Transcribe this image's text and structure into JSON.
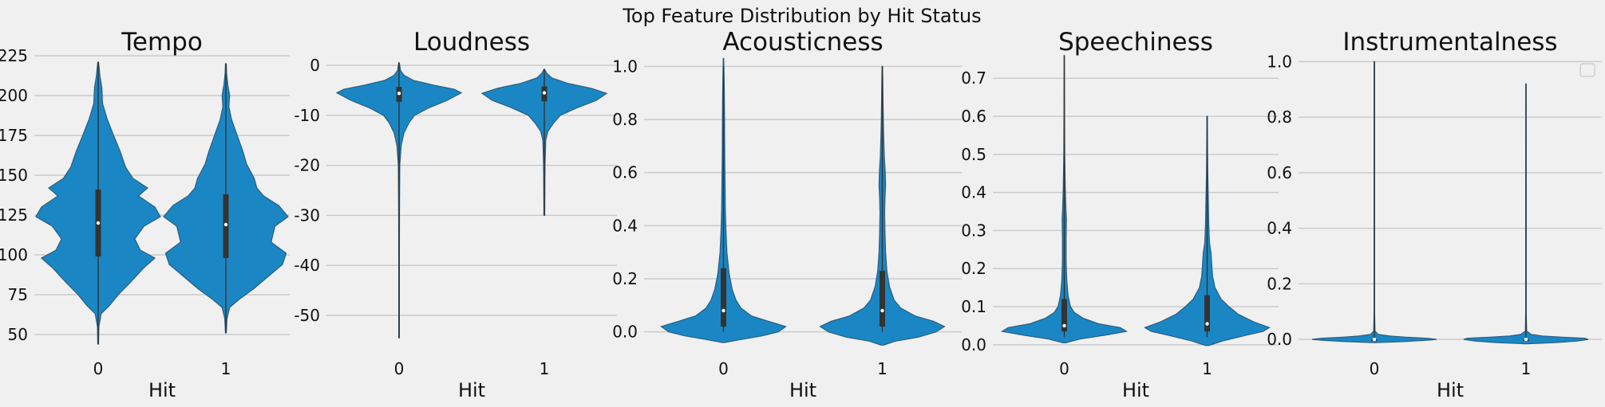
{
  "figure": {
    "suptitle": "Top Feature Distribution by Hit Status",
    "fill_color": "#1a87c4",
    "edge_color": "#2b5d80",
    "background": "#f0f0f0",
    "grid_color": "#cbcbcb"
  },
  "chart_data": [
    {
      "type": "violin",
      "title": "Tempo",
      "xlabel": "Hit",
      "categories": [
        "0",
        "1"
      ],
      "yticks": [
        50,
        75,
        100,
        125,
        150,
        175,
        200,
        225
      ],
      "ylim": [
        40,
        230
      ],
      "grid": true,
      "series": [
        {
          "category": "0",
          "min": 44,
          "q1": 99,
          "median": 120,
          "q3": 141,
          "max": 221,
          "profile": [
            [
              44,
              0.01
            ],
            [
              55,
              0.02
            ],
            [
              63,
              0.08
            ],
            [
              68,
              0.3
            ],
            [
              75,
              0.55
            ],
            [
              82,
              0.85
            ],
            [
              92,
              1.25
            ],
            [
              98,
              1.55
            ],
            [
              103,
              1.15
            ],
            [
              110,
              1.0
            ],
            [
              118,
              1.25
            ],
            [
              124,
              1.7
            ],
            [
              130,
              1.55
            ],
            [
              137,
              1.1
            ],
            [
              142,
              1.35
            ],
            [
              148,
              0.95
            ],
            [
              155,
              0.75
            ],
            [
              165,
              0.6
            ],
            [
              175,
              0.42
            ],
            [
              185,
              0.25
            ],
            [
              195,
              0.12
            ],
            [
              205,
              0.1
            ],
            [
              212,
              0.05
            ],
            [
              221,
              0.01
            ]
          ]
        },
        {
          "category": "1",
          "min": 51,
          "q1": 98,
          "median": 119,
          "q3": 138,
          "max": 220,
          "profile": [
            [
              51,
              0.01
            ],
            [
              60,
              0.03
            ],
            [
              67,
              0.1
            ],
            [
              72,
              0.35
            ],
            [
              79,
              0.75
            ],
            [
              85,
              1.05
            ],
            [
              94,
              1.5
            ],
            [
              101,
              1.6
            ],
            [
              108,
              1.2
            ],
            [
              118,
              1.3
            ],
            [
              124,
              1.65
            ],
            [
              131,
              1.4
            ],
            [
              137,
              1.0
            ],
            [
              142,
              0.82
            ],
            [
              148,
              0.75
            ],
            [
              157,
              0.55
            ],
            [
              165,
              0.45
            ],
            [
              175,
              0.3
            ],
            [
              185,
              0.15
            ],
            [
              193,
              0.08
            ],
            [
              200,
              0.1
            ],
            [
              207,
              0.05
            ],
            [
              214,
              0.02
            ],
            [
              220,
              0.01
            ]
          ]
        }
      ]
    },
    {
      "type": "violin",
      "title": "Loudness",
      "xlabel": "Hit",
      "categories": [
        "0",
        "1"
      ],
      "yticks": [
        0,
        -10,
        -20,
        -30,
        -40,
        -50
      ],
      "ylim": [
        -57,
        3.5
      ],
      "grid": true,
      "series": [
        {
          "category": "0",
          "min": -54.5,
          "q1": -7.3,
          "median": -5.6,
          "q3": -4.3,
          "max": 0.5,
          "profile": [
            [
              -54.5,
              0.004
            ],
            [
              -40,
              0.004
            ],
            [
              -30,
              0.006
            ],
            [
              -20,
              0.01
            ],
            [
              -16,
              0.03
            ],
            [
              -13.5,
              0.07
            ],
            [
              -11.5,
              0.14
            ],
            [
              -10,
              0.22
            ],
            [
              -8.5,
              0.42
            ],
            [
              -7,
              0.68
            ],
            [
              -5.5,
              0.88
            ],
            [
              -4.8,
              0.78
            ],
            [
              -4,
              0.5
            ],
            [
              -3,
              0.2
            ],
            [
              -2,
              0.07
            ],
            [
              -1,
              0.02
            ],
            [
              0.5,
              0.005
            ]
          ]
        },
        {
          "category": "1",
          "min": -30,
          "q1": -7.2,
          "median": -5.5,
          "q3": -4.2,
          "max": -0.8,
          "profile": [
            [
              -30,
              0.005
            ],
            [
              -20,
              0.01
            ],
            [
              -15,
              0.02
            ],
            [
              -13.2,
              0.05
            ],
            [
              -11.5,
              0.13
            ],
            [
              -10,
              0.22
            ],
            [
              -8.5,
              0.45
            ],
            [
              -7,
              0.72
            ],
            [
              -5.6,
              0.86
            ],
            [
              -4.6,
              0.65
            ],
            [
              -3.6,
              0.32
            ],
            [
              -2.5,
              0.1
            ],
            [
              -1.5,
              0.03
            ],
            [
              -0.8,
              0.005
            ]
          ]
        }
      ]
    },
    {
      "type": "violin",
      "title": "Acousticness",
      "xlabel": "Hit",
      "categories": [
        "0",
        "1"
      ],
      "yticks": [
        0.0,
        0.2,
        0.4,
        0.6,
        0.8,
        1.0
      ],
      "ylim": [
        -0.07,
        1.07
      ],
      "grid": true,
      "series": [
        {
          "category": "0",
          "min": 0.0,
          "q1": 0.02,
          "median": 0.08,
          "q3": 0.24,
          "max": 1.0,
          "profile": [
            [
              -0.04,
              0.02
            ],
            [
              -0.03,
              0.25
            ],
            [
              -0.015,
              0.62
            ],
            [
              0.0,
              0.88
            ],
            [
              0.02,
              1.0
            ],
            [
              0.04,
              0.72
            ],
            [
              0.06,
              0.45
            ],
            [
              0.09,
              0.28
            ],
            [
              0.12,
              0.2
            ],
            [
              0.16,
              0.14
            ],
            [
              0.22,
              0.09
            ],
            [
              0.3,
              0.055
            ],
            [
              0.38,
              0.04
            ],
            [
              0.46,
              0.03
            ],
            [
              0.55,
              0.025
            ],
            [
              0.65,
              0.02
            ],
            [
              0.75,
              0.018
            ],
            [
              0.85,
              0.015
            ],
            [
              0.93,
              0.012
            ],
            [
              0.98,
              0.008
            ],
            [
              1.03,
              0.004
            ]
          ]
        },
        {
          "category": "1",
          "min": 0.0,
          "q1": 0.02,
          "median": 0.08,
          "q3": 0.23,
          "max": 1.0,
          "profile": [
            [
              -0.05,
              0.02
            ],
            [
              -0.035,
              0.2
            ],
            [
              -0.02,
              0.55
            ],
            [
              0.0,
              0.82
            ],
            [
              0.02,
              0.95
            ],
            [
              0.04,
              0.78
            ],
            [
              0.06,
              0.5
            ],
            [
              0.09,
              0.28
            ],
            [
              0.12,
              0.18
            ],
            [
              0.17,
              0.11
            ],
            [
              0.23,
              0.07
            ],
            [
              0.3,
              0.05
            ],
            [
              0.38,
              0.04
            ],
            [
              0.45,
              0.035
            ],
            [
              0.5,
              0.04
            ],
            [
              0.55,
              0.05
            ],
            [
              0.6,
              0.045
            ],
            [
              0.66,
              0.03
            ],
            [
              0.75,
              0.02
            ],
            [
              0.85,
              0.012
            ],
            [
              0.93,
              0.008
            ],
            [
              1.0,
              0.004
            ]
          ]
        }
      ]
    },
    {
      "type": "violin",
      "title": "Speechiness",
      "xlabel": "Hit",
      "categories": [
        "0",
        "1"
      ],
      "yticks": [
        0.0,
        0.1,
        0.2,
        0.3,
        0.4,
        0.5,
        0.6,
        0.7
      ],
      "ylim": [
        -0.015,
        0.78
      ],
      "grid": true,
      "series": [
        {
          "category": "0",
          "min": 0.02,
          "q1": 0.035,
          "median": 0.05,
          "q3": 0.12,
          "max": 0.76,
          "profile": [
            [
              0.005,
              0.02
            ],
            [
              0.015,
              0.25
            ],
            [
              0.025,
              0.65
            ],
            [
              0.035,
              1.0
            ],
            [
              0.045,
              0.9
            ],
            [
              0.055,
              0.55
            ],
            [
              0.07,
              0.3
            ],
            [
              0.085,
              0.16
            ],
            [
              0.1,
              0.1
            ],
            [
              0.13,
              0.06
            ],
            [
              0.17,
              0.04
            ],
            [
              0.22,
              0.03
            ],
            [
              0.28,
              0.03
            ],
            [
              0.33,
              0.035
            ],
            [
              0.36,
              0.025
            ],
            [
              0.42,
              0.015
            ],
            [
              0.5,
              0.008
            ],
            [
              0.6,
              0.005
            ],
            [
              0.7,
              0.004
            ],
            [
              0.76,
              0.003
            ]
          ]
        },
        {
          "category": "1",
          "min": 0.02,
          "q1": 0.035,
          "median": 0.055,
          "q3": 0.13,
          "max": 0.6,
          "profile": [
            [
              -0.002,
              0.02
            ],
            [
              0.01,
              0.2
            ],
            [
              0.025,
              0.5
            ],
            [
              0.035,
              0.72
            ],
            [
              0.045,
              0.8
            ],
            [
              0.06,
              0.6
            ],
            [
              0.08,
              0.4
            ],
            [
              0.1,
              0.28
            ],
            [
              0.12,
              0.18
            ],
            [
              0.15,
              0.1
            ],
            [
              0.18,
              0.07
            ],
            [
              0.21,
              0.06
            ],
            [
              0.24,
              0.05
            ],
            [
              0.27,
              0.03
            ],
            [
              0.32,
              0.02
            ],
            [
              0.38,
              0.015
            ],
            [
              0.45,
              0.008
            ],
            [
              0.52,
              0.005
            ],
            [
              0.6,
              0.003
            ]
          ]
        }
      ]
    },
    {
      "type": "violin",
      "title": "Instrumentalness",
      "xlabel": "Hit",
      "categories": [
        "0",
        "1"
      ],
      "yticks": [
        0.0,
        0.2,
        0.4,
        0.6,
        0.8,
        1.0
      ],
      "ylim": [
        -0.04,
        1.05
      ],
      "grid": true,
      "legend": "top-right",
      "series": [
        {
          "category": "0",
          "min": 0.0,
          "q1": 0.0,
          "median": 0.0,
          "q3": 0.0,
          "max": 1.0,
          "profile": [
            [
              -0.012,
              0.02
            ],
            [
              -0.008,
              0.5
            ],
            [
              -0.003,
              0.85
            ],
            [
              0.0,
              1.0
            ],
            [
              0.004,
              0.85
            ],
            [
              0.008,
              0.5
            ],
            [
              0.012,
              0.25
            ],
            [
              0.018,
              0.06
            ],
            [
              0.03,
              0.01
            ],
            [
              0.1,
              0.004
            ],
            [
              0.5,
              0.004
            ],
            [
              1.0,
              0.004
            ]
          ]
        },
        {
          "category": "1",
          "min": 0.0,
          "q1": 0.0,
          "median": 0.0,
          "q3": 0.0,
          "max": 0.92,
          "profile": [
            [
              -0.016,
              0.02
            ],
            [
              -0.012,
              0.45
            ],
            [
              -0.006,
              0.78
            ],
            [
              0.0,
              0.95
            ],
            [
              0.004,
              0.9
            ],
            [
              0.008,
              0.55
            ],
            [
              0.012,
              0.25
            ],
            [
              0.018,
              0.08
            ],
            [
              0.03,
              0.01
            ],
            [
              0.1,
              0.004
            ],
            [
              0.5,
              0.004
            ],
            [
              0.92,
              0.003
            ]
          ]
        }
      ]
    }
  ]
}
